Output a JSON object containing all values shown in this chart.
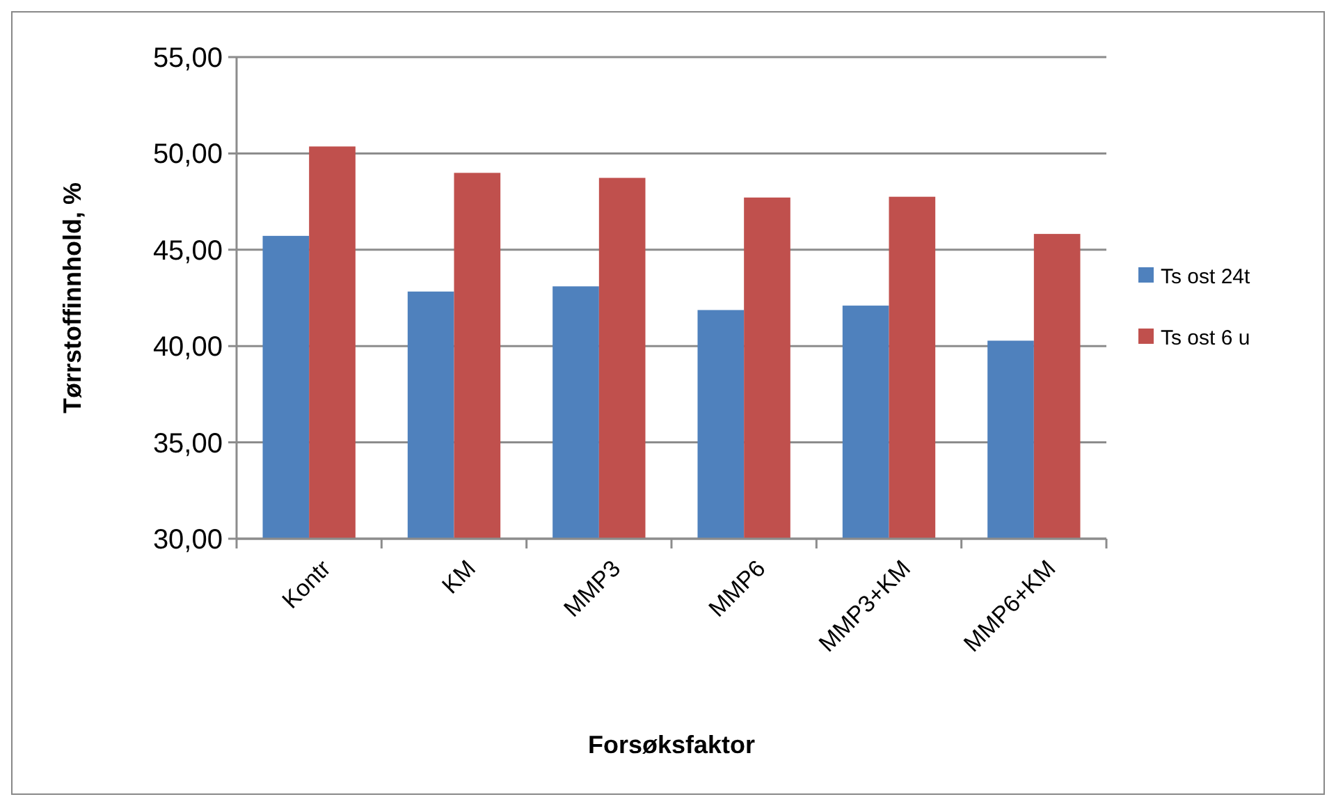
{
  "chart_data": {
    "type": "bar",
    "xlabel": "Forsøksfaktor",
    "ylabel": "Tørrstoffinnhold, %",
    "categories": [
      "Kontr",
      "KM",
      "MMP3",
      "MMP6",
      "MMP3+KM",
      "MMP6+KM"
    ],
    "series": [
      {
        "name": "Ts ost 24t",
        "color": "#4f81bd",
        "values": [
          45.72,
          42.83,
          43.1,
          41.87,
          42.1,
          40.28
        ]
      },
      {
        "name": "Ts ost 6 u",
        "color": "#c0504d",
        "values": [
          50.36,
          48.99,
          48.73,
          47.71,
          47.75,
          45.82
        ]
      }
    ],
    "ylim": [
      30,
      55
    ],
    "yticks": [
      {
        "value": 30,
        "label": "30,00"
      },
      {
        "value": 35,
        "label": "35,00"
      },
      {
        "value": 40,
        "label": "40,00"
      },
      {
        "value": 45,
        "label": "45,00"
      },
      {
        "value": 50,
        "label": "50,00"
      },
      {
        "value": 55,
        "label": "55,00"
      }
    ],
    "grid": "y",
    "legend": "right"
  }
}
